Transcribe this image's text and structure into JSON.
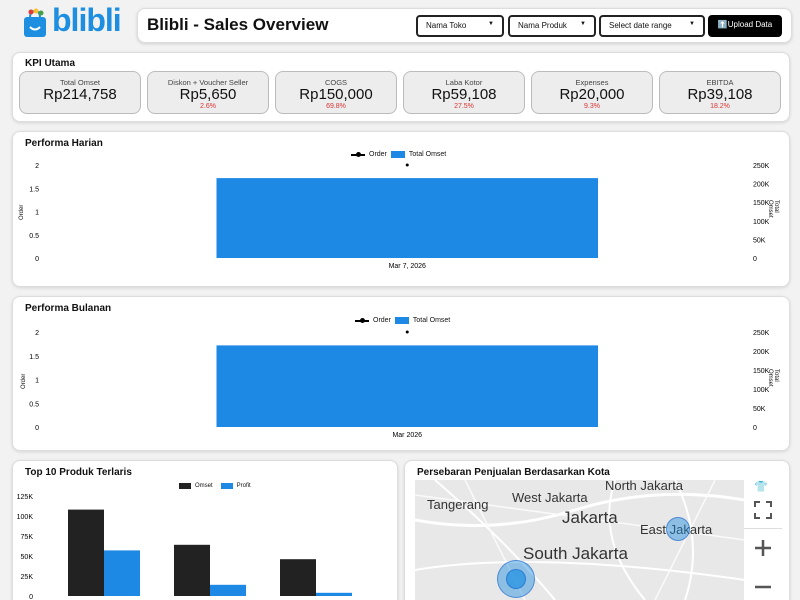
{
  "logo_text": "blibli",
  "header": {
    "title": "Blibli - Sales Overview",
    "filters": [
      {
        "label": "Nama Toko"
      },
      {
        "label": "Nama Produk"
      },
      {
        "label": "Select date range"
      }
    ],
    "upload_label": "⬆️Upload Data"
  },
  "kpi": {
    "title": "KPI Utama",
    "items": [
      {
        "label": "Total Omset",
        "value": "Rp214,758",
        "pct": ""
      },
      {
        "label": "Diskon + Voucher Seller",
        "value": "Rp5,650",
        "pct": "2.6%"
      },
      {
        "label": "COGS",
        "value": "Rp150,000",
        "pct": "69.8%"
      },
      {
        "label": "Laba Kotor",
        "value": "Rp59,108",
        "pct": "27.5%"
      },
      {
        "label": "Expenses",
        "value": "Rp20,000",
        "pct": "9.3%"
      },
      {
        "label": "EBITDA",
        "value": "Rp39,108",
        "pct": "18.2%"
      }
    ]
  },
  "colors": {
    "blue": "#1e88e5",
    "black": "#222222",
    "red": "#d33333"
  },
  "chart_data": [
    {
      "type": "bar",
      "title": "Performa Harian",
      "legend": [
        "Order",
        "Total Omset"
      ],
      "categories": [
        "Mar 7, 2026"
      ],
      "series": [
        {
          "name": "Total Omset",
          "values": [
            214758
          ]
        },
        {
          "name": "Order",
          "values": [
            2
          ]
        }
      ],
      "ylabel": "Order",
      "y2label": "Total Omset",
      "yticks": [
        "2",
        "1.5",
        "1",
        "0.5",
        "0"
      ],
      "y2ticks": [
        "250K",
        "200K",
        "150K",
        "100K",
        "50K",
        "0"
      ],
      "ylim": [
        0,
        2
      ],
      "y2lim": [
        0,
        250000
      ]
    },
    {
      "type": "bar",
      "title": "Performa Bulanan",
      "legend": [
        "Order",
        "Total Omset"
      ],
      "categories": [
        "Mar 2026"
      ],
      "series": [
        {
          "name": "Total Omset",
          "values": [
            214758
          ]
        },
        {
          "name": "Order",
          "values": [
            2
          ]
        }
      ],
      "ylabel": "Order",
      "y2label": "Total Omset",
      "yticks": [
        "2",
        "1.5",
        "1",
        "0.5",
        "0"
      ],
      "y2ticks": [
        "250K",
        "200K",
        "150K",
        "100K",
        "50K",
        "0"
      ],
      "ylim": [
        0,
        2
      ],
      "y2lim": [
        0,
        250000
      ]
    },
    {
      "type": "bar",
      "title": "Top 10 Produk Terlaris",
      "legend": [
        "Omset",
        "Profit"
      ],
      "series": [
        {
          "name": "Omset",
          "values": [
            108000,
            64000,
            46000
          ]
        },
        {
          "name": "Profit",
          "values": [
            57000,
            14000,
            4000
          ]
        }
      ],
      "yticks": [
        "125K",
        "100K",
        "75K",
        "50K",
        "25K",
        "0"
      ],
      "ylim": [
        0,
        125000
      ]
    }
  ],
  "map": {
    "title": "Persebaran Penjualan Berdasarkan Kota",
    "labels": [
      "Tangerang",
      "West Jakarta",
      "North Jakarta",
      "Jakarta",
      "East Jakarta",
      "South Jakarta"
    ]
  }
}
